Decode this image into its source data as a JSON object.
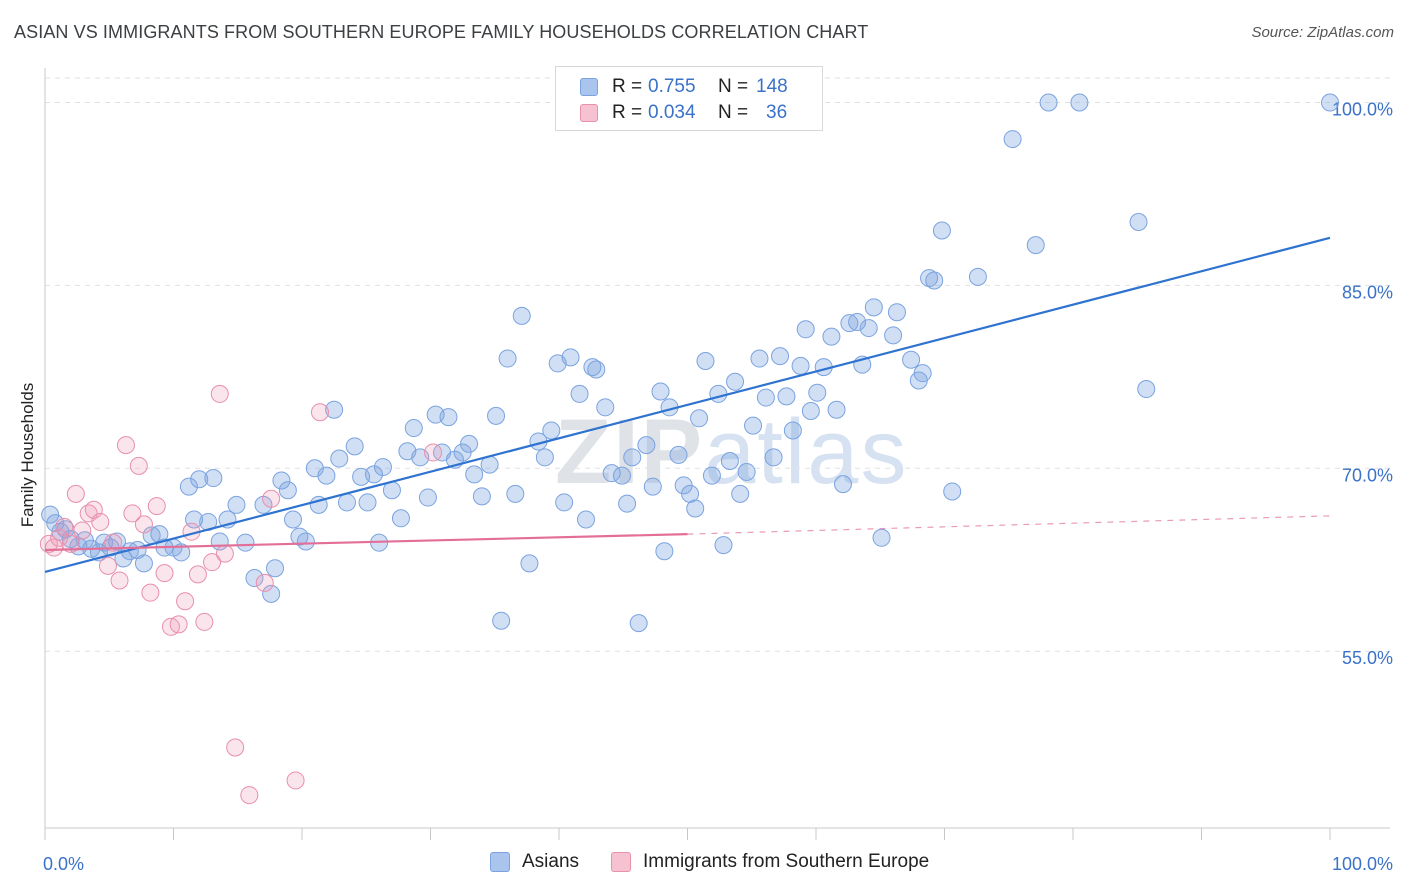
{
  "title": "ASIAN VS IMMIGRANTS FROM SOUTHERN EUROPE FAMILY HOUSEHOLDS CORRELATION CHART",
  "source": "Source: ZipAtlas.com",
  "watermark": {
    "zip": "ZIP",
    "atlas": "atlas"
  },
  "legend": {
    "rows": [
      {
        "r_label": "R =",
        "r_value": "0.755",
        "n_label": "N =",
        "n_value": "148",
        "color": "#a9c5ee",
        "border": "#7aa3e0"
      },
      {
        "r_label": "R =",
        "r_value": "0.034",
        "n_label": "N =",
        "n_value": "36",
        "color": "#f6c1d0",
        "border": "#e891ab"
      }
    ]
  },
  "bottom_legend": [
    {
      "label": "Asians",
      "color": "#a9c5ee",
      "border": "#7aa3e0"
    },
    {
      "label": "Immigrants from Southern Europe",
      "color": "#f6c1d0",
      "border": "#e891ab"
    }
  ],
  "colors": {
    "blue_fill": "rgba(122,163,224,0.35)",
    "blue_stroke": "#7aa3e0",
    "blue_line": "#2f73d0",
    "pink_fill": "rgba(240,150,180,0.25)",
    "pink_stroke": "#e88fab",
    "pink_line": "#e36f98",
    "grid": "#e1e1e1",
    "tick_label": "#3a72c8"
  },
  "chart_data": {
    "type": "scatter",
    "title": "ASIAN VS IMMIGRANTS FROM SOUTHERN EUROPE FAMILY HOUSEHOLDS CORRELATION CHART",
    "xlabel": "",
    "ylabel": "Family Households",
    "xlim": [
      0,
      100
    ],
    "ylim": [
      40.5,
      102.5
    ],
    "x_tick_labels": [
      "0.0%",
      "100.0%"
    ],
    "y_ticks": [
      55,
      70,
      85,
      100
    ],
    "y_tick_labels": [
      "55.0%",
      "70.0%",
      "85.0%",
      "100.0%"
    ],
    "grid": true,
    "series": [
      {
        "name": "Asians",
        "R": 0.755,
        "N": 148,
        "trend": {
          "x": [
            0,
            100
          ],
          "y": [
            61.5,
            88.9
          ]
        },
        "points": [
          [
            0.4,
            66.2
          ],
          [
            0.8,
            65.5
          ],
          [
            1.2,
            64.8
          ],
          [
            1.6,
            65.0
          ],
          [
            2.0,
            64.2
          ],
          [
            2.6,
            63.6
          ],
          [
            3.1,
            64.1
          ],
          [
            3.6,
            63.4
          ],
          [
            4.2,
            63.1
          ],
          [
            4.6,
            63.9
          ],
          [
            5.1,
            63.5
          ],
          [
            5.6,
            64.0
          ],
          [
            6.1,
            62.6
          ],
          [
            6.6,
            63.2
          ],
          [
            7.2,
            63.3
          ],
          [
            7.7,
            62.2
          ],
          [
            8.3,
            64.5
          ],
          [
            8.9,
            64.6
          ],
          [
            9.3,
            63.5
          ],
          [
            10.0,
            63.5
          ],
          [
            10.6,
            63.1
          ],
          [
            11.2,
            68.5
          ],
          [
            11.6,
            65.8
          ],
          [
            12.0,
            69.1
          ],
          [
            12.7,
            65.6
          ],
          [
            13.1,
            69.2
          ],
          [
            13.6,
            64.0
          ],
          [
            14.2,
            65.8
          ],
          [
            14.9,
            67.0
          ],
          [
            15.6,
            63.9
          ],
          [
            16.3,
            61.0
          ],
          [
            17.0,
            67.0
          ],
          [
            17.6,
            59.7
          ],
          [
            17.9,
            61.8
          ],
          [
            18.4,
            69.0
          ],
          [
            18.9,
            68.2
          ],
          [
            19.3,
            65.8
          ],
          [
            19.8,
            64.4
          ],
          [
            20.3,
            64.0
          ],
          [
            21.0,
            70.0
          ],
          [
            21.3,
            67.0
          ],
          [
            21.9,
            69.4
          ],
          [
            22.5,
            74.8
          ],
          [
            22.9,
            70.8
          ],
          [
            23.5,
            67.2
          ],
          [
            24.1,
            71.8
          ],
          [
            24.6,
            69.3
          ],
          [
            25.1,
            67.2
          ],
          [
            25.6,
            69.5
          ],
          [
            26.3,
            70.1
          ],
          [
            26.0,
            63.9
          ],
          [
            27.0,
            68.2
          ],
          [
            27.7,
            65.9
          ],
          [
            28.2,
            71.4
          ],
          [
            28.7,
            73.3
          ],
          [
            29.2,
            70.9
          ],
          [
            29.8,
            67.6
          ],
          [
            30.4,
            74.4
          ],
          [
            30.9,
            71.3
          ],
          [
            31.4,
            74.2
          ],
          [
            31.9,
            70.7
          ],
          [
            32.5,
            71.3
          ],
          [
            33.0,
            72.0
          ],
          [
            33.4,
            69.5
          ],
          [
            34.0,
            67.7
          ],
          [
            34.6,
            70.3
          ],
          [
            35.1,
            74.3
          ],
          [
            35.5,
            57.5
          ],
          [
            36.0,
            79.0
          ],
          [
            36.6,
            67.9
          ],
          [
            37.1,
            82.5
          ],
          [
            37.7,
            62.2
          ],
          [
            38.4,
            72.2
          ],
          [
            38.9,
            70.9
          ],
          [
            39.4,
            73.1
          ],
          [
            39.9,
            78.6
          ],
          [
            40.4,
            67.2
          ],
          [
            40.9,
            79.1
          ],
          [
            41.6,
            76.1
          ],
          [
            42.1,
            65.8
          ],
          [
            42.6,
            78.3
          ],
          [
            42.9,
            78.1
          ],
          [
            43.6,
            75.0
          ],
          [
            44.1,
            69.6
          ],
          [
            44.9,
            69.4
          ],
          [
            45.3,
            67.1
          ],
          [
            45.7,
            70.9
          ],
          [
            46.2,
            57.3
          ],
          [
            46.8,
            71.9
          ],
          [
            47.3,
            68.5
          ],
          [
            47.9,
            76.3
          ],
          [
            48.2,
            63.2
          ],
          [
            48.6,
            75.0
          ],
          [
            49.3,
            71.1
          ],
          [
            49.7,
            68.6
          ],
          [
            50.2,
            67.9
          ],
          [
            50.6,
            66.7
          ],
          [
            50.9,
            74.1
          ],
          [
            51.4,
            78.8
          ],
          [
            51.9,
            69.4
          ],
          [
            52.4,
            76.1
          ],
          [
            52.8,
            63.7
          ],
          [
            53.3,
            70.6
          ],
          [
            53.7,
            77.1
          ],
          [
            54.1,
            67.9
          ],
          [
            54.6,
            69.7
          ],
          [
            55.1,
            73.5
          ],
          [
            55.6,
            79.0
          ],
          [
            56.1,
            75.8
          ],
          [
            56.7,
            70.9
          ],
          [
            57.2,
            79.2
          ],
          [
            57.7,
            75.9
          ],
          [
            58.2,
            73.1
          ],
          [
            58.8,
            78.4
          ],
          [
            59.2,
            81.4
          ],
          [
            59.6,
            74.7
          ],
          [
            60.1,
            76.2
          ],
          [
            60.6,
            78.3
          ],
          [
            61.2,
            80.8
          ],
          [
            61.6,
            74.8
          ],
          [
            62.1,
            68.7
          ],
          [
            62.6,
            81.9
          ],
          [
            63.2,
            82.0
          ],
          [
            63.6,
            78.5
          ],
          [
            64.1,
            81.5
          ],
          [
            64.5,
            83.2
          ],
          [
            65.1,
            64.3
          ],
          [
            66.0,
            80.9
          ],
          [
            66.3,
            82.8
          ],
          [
            67.4,
            78.9
          ],
          [
            68.0,
            77.2
          ],
          [
            68.3,
            77.8
          ],
          [
            68.8,
            85.6
          ],
          [
            69.2,
            85.4
          ],
          [
            69.8,
            89.5
          ],
          [
            70.6,
            68.1
          ],
          [
            72.6,
            85.7
          ],
          [
            75.3,
            97.0
          ],
          [
            77.1,
            88.3
          ],
          [
            78.1,
            100.0
          ],
          [
            80.5,
            100.0
          ],
          [
            85.1,
            90.2
          ],
          [
            85.7,
            76.5
          ],
          [
            100.0,
            100.0
          ]
        ]
      },
      {
        "name": "Immigrants from Southern Europe",
        "R": 0.034,
        "N": 36,
        "trend": {
          "x": [
            0,
            50
          ],
          "y": [
            63.3,
            64.6
          ],
          "dashed_extension": {
            "x": [
              50,
              100
            ],
            "y": [
              64.6,
              66.1
            ]
          }
        },
        "points": [
          [
            0.3,
            63.8
          ],
          [
            0.7,
            63.5
          ],
          [
            1.1,
            64.3
          ],
          [
            1.5,
            65.2
          ],
          [
            2.0,
            63.8
          ],
          [
            2.4,
            67.9
          ],
          [
            2.9,
            64.9
          ],
          [
            3.4,
            66.3
          ],
          [
            3.8,
            66.6
          ],
          [
            4.3,
            65.6
          ],
          [
            4.9,
            62.0
          ],
          [
            5.3,
            63.9
          ],
          [
            5.8,
            60.8
          ],
          [
            6.3,
            71.9
          ],
          [
            6.8,
            66.3
          ],
          [
            7.3,
            70.2
          ],
          [
            7.7,
            65.4
          ],
          [
            8.2,
            59.8
          ],
          [
            8.7,
            66.9
          ],
          [
            9.3,
            61.4
          ],
          [
            9.8,
            57.0
          ],
          [
            10.4,
            57.2
          ],
          [
            10.9,
            59.1
          ],
          [
            11.4,
            64.8
          ],
          [
            11.9,
            61.3
          ],
          [
            12.4,
            57.4
          ],
          [
            13.0,
            62.3
          ],
          [
            13.6,
            76.1
          ],
          [
            14.0,
            63.0
          ],
          [
            14.8,
            47.1
          ],
          [
            15.9,
            43.2
          ],
          [
            17.1,
            60.6
          ],
          [
            17.6,
            67.5
          ],
          [
            19.5,
            44.4
          ],
          [
            21.4,
            74.6
          ],
          [
            30.2,
            71.3
          ]
        ]
      }
    ]
  }
}
